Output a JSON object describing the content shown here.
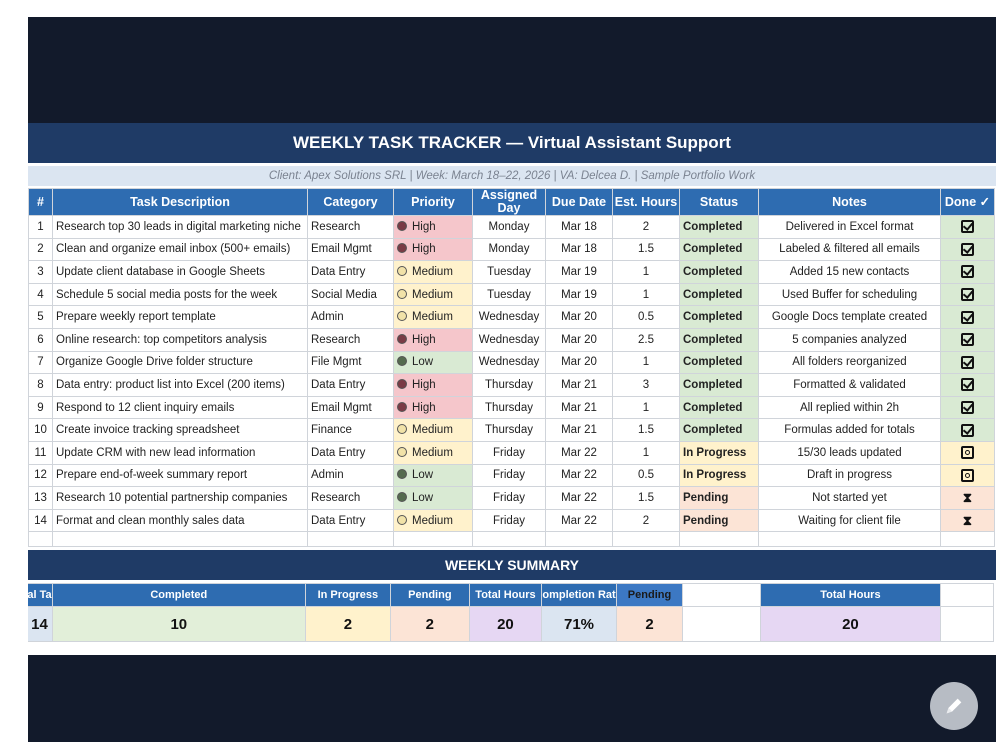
{
  "sheet": {
    "title": "WEEKLY TASK TRACKER — Virtual Assistant Support",
    "subtitle": "Client: Apex Solutions SRL  |  Week: March 18–22, 2026  |  VA: Delcea D.  |  Sample Portfolio Work",
    "headers": {
      "num": "#",
      "task": "Task Description",
      "category": "Category",
      "priority": "Priority",
      "assigned_day": "Assigned Day",
      "due_date": "Due Date",
      "est_hours": "Est. Hours",
      "status": "Status",
      "notes": "Notes",
      "done": "Done ✓"
    },
    "tasks": [
      {
        "num": "1",
        "task": "Research top 30 leads in digital marketing niche",
        "category": "Research",
        "priority": "High",
        "day": "Monday",
        "due": "Mar 18",
        "hours": "2",
        "status": "Completed",
        "notes": "Delivered in Excel format",
        "done": "check"
      },
      {
        "num": "2",
        "task": "Clean and organize email inbox (500+ emails)",
        "category": "Email Mgmt",
        "priority": "High",
        "day": "Monday",
        "due": "Mar 18",
        "hours": "1.5",
        "status": "Completed",
        "notes": "Labeled & filtered all emails",
        "done": "check"
      },
      {
        "num": "3",
        "task": "Update client database in Google Sheets",
        "category": "Data Entry",
        "priority": "Medium",
        "day": "Tuesday",
        "due": "Mar 19",
        "hours": "1",
        "status": "Completed",
        "notes": "Added 15 new contacts",
        "done": "check"
      },
      {
        "num": "4",
        "task": "Schedule 5 social media posts for the week",
        "category": "Social Media",
        "priority": "Medium",
        "day": "Tuesday",
        "due": "Mar 19",
        "hours": "1",
        "status": "Completed",
        "notes": "Used Buffer for scheduling",
        "done": "check"
      },
      {
        "num": "5",
        "task": "Prepare weekly report template",
        "category": "Admin",
        "priority": "Medium",
        "day": "Wednesday",
        "due": "Mar 20",
        "hours": "0.5",
        "status": "Completed",
        "notes": "Google Docs template created",
        "done": "check"
      },
      {
        "num": "6",
        "task": "Online research: top competitors analysis",
        "category": "Research",
        "priority": "High",
        "day": "Wednesday",
        "due": "Mar 20",
        "hours": "2.5",
        "status": "Completed",
        "notes": "5 companies analyzed",
        "done": "check"
      },
      {
        "num": "7",
        "task": "Organize Google Drive folder structure",
        "category": "File Mgmt",
        "priority": "Low",
        "day": "Wednesday",
        "due": "Mar 20",
        "hours": "1",
        "status": "Completed",
        "notes": "All folders reorganized",
        "done": "check"
      },
      {
        "num": "8",
        "task": "Data entry: product list into Excel (200 items)",
        "category": "Data Entry",
        "priority": "High",
        "day": "Thursday",
        "due": "Mar 21",
        "hours": "3",
        "status": "Completed",
        "notes": "Formatted & validated",
        "done": "check"
      },
      {
        "num": "9",
        "task": "Respond to 12 client inquiry emails",
        "category": "Email Mgmt",
        "priority": "High",
        "day": "Thursday",
        "due": "Mar 21",
        "hours": "1",
        "status": "Completed",
        "notes": "All replied within 2h",
        "done": "check"
      },
      {
        "num": "10",
        "task": "Create invoice tracking spreadsheet",
        "category": "Finance",
        "priority": "Medium",
        "day": "Thursday",
        "due": "Mar 21",
        "hours": "1.5",
        "status": "Completed",
        "notes": "Formulas added for totals",
        "done": "check"
      },
      {
        "num": "11",
        "task": "Update CRM with new lead information",
        "category": "Data Entry",
        "priority": "Medium",
        "day": "Friday",
        "due": "Mar 22",
        "hours": "1",
        "status": "In Progress",
        "notes": "15/30 leads updated",
        "done": "progress"
      },
      {
        "num": "12",
        "task": "Prepare end-of-week summary report",
        "category": "Admin",
        "priority": "Low",
        "day": "Friday",
        "due": "Mar 22",
        "hours": "0.5",
        "status": "In Progress",
        "notes": "Draft in progress",
        "done": "progress"
      },
      {
        "num": "13",
        "task": "Research 10 potential partnership companies",
        "category": "Research",
        "priority": "Low",
        "day": "Friday",
        "due": "Mar 22",
        "hours": "1.5",
        "status": "Pending",
        "notes": "Not started yet",
        "done": "pending"
      },
      {
        "num": "14",
        "task": "Format and clean monthly sales data",
        "category": "Data Entry",
        "priority": "Medium",
        "day": "Friday",
        "due": "Mar 22",
        "hours": "2",
        "status": "Pending",
        "notes": "Waiting for client file",
        "done": "pending"
      }
    ],
    "priority_colors": {
      "High": "#7a3b45",
      "Medium": "#f1e2a8",
      "Low": "#556b4f"
    },
    "summary": {
      "title": "WEEKLY SUMMARY",
      "headers": [
        "al Ta",
        "Completed",
        "In Progress",
        "Pending",
        "Total Hours",
        "ompletion Rat",
        "Pending",
        "",
        "Total Hours",
        ""
      ],
      "values": [
        "14",
        "10",
        "2",
        "2",
        "20",
        "71%",
        "2",
        "",
        "20",
        ""
      ]
    }
  },
  "fab": {
    "icon": "pencil-icon"
  }
}
